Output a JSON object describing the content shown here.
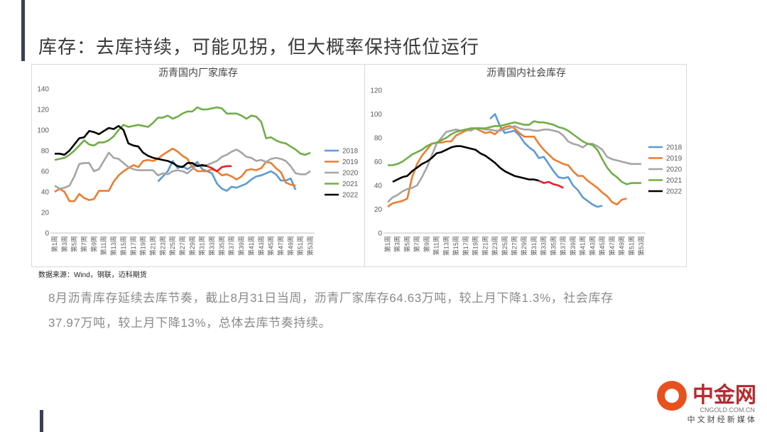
{
  "title": "库存：去库持续，可能见拐，但大概率保持低位运行",
  "chart_data": [
    {
      "type": "line",
      "title": "沥青国内厂家库存",
      "categories": [
        "第1周",
        null,
        "第3周",
        null,
        "第5周",
        null,
        "第7周",
        null,
        "第9周",
        null,
        "第11周",
        null,
        "第13周",
        null,
        "第15周",
        null,
        "第17周",
        null,
        "第19周",
        null,
        "第21周",
        null,
        "第23周",
        null,
        "第25周",
        null,
        "第27周",
        null,
        "第29周",
        null,
        "第31周",
        null,
        "第33周",
        null,
        "第35周",
        null,
        "第37周",
        null,
        "第39周",
        null,
        "第41周",
        null,
        "第43周",
        null,
        "第45周",
        null,
        "第47周",
        null,
        "第49周",
        null,
        "第51周",
        null,
        "第53周"
      ],
      "ylim": [
        0,
        140
      ],
      "yticks": [
        0,
        20,
        40,
        60,
        80,
        100,
        120,
        140
      ],
      "grid": false,
      "legend": "right",
      "series": [
        {
          "name": "2018",
          "color": "#5b9bd5",
          "values": [
            null,
            null,
            null,
            null,
            null,
            null,
            null,
            null,
            null,
            null,
            null,
            null,
            null,
            null,
            null,
            null,
            null,
            null,
            null,
            null,
            null,
            50,
            55,
            60,
            70,
            63,
            65,
            62,
            65,
            69,
            62,
            60,
            58,
            48,
            43,
            41,
            45,
            44,
            46,
            48,
            52,
            55,
            56,
            58,
            60,
            57,
            51,
            51,
            53,
            42,
            null,
            null,
            null
          ]
        },
        {
          "name": "2019",
          "color": "#ed7d31",
          "values": [
            40,
            43,
            40,
            31,
            31,
            38,
            34,
            32,
            33,
            41,
            41,
            41,
            50,
            56,
            60,
            63,
            66,
            64,
            70,
            71,
            70,
            72,
            76,
            79,
            82,
            79,
            75,
            72,
            64,
            60,
            60,
            60,
            62,
            60,
            56,
            57,
            55,
            52,
            55,
            61,
            62,
            61,
            63,
            69,
            68,
            63,
            59,
            49,
            47,
            46,
            null,
            null,
            null
          ]
        },
        {
          "name": "2020",
          "color": "#a5a5a5",
          "values": [
            46,
            43,
            44,
            46,
            55,
            67,
            68,
            68,
            60,
            62,
            70,
            78,
            73,
            72,
            68,
            64,
            62,
            61,
            61,
            61,
            61,
            56,
            58,
            57,
            60,
            61,
            60,
            58,
            62,
            67,
            65,
            66,
            68,
            70,
            74,
            76,
            79,
            81,
            78,
            74,
            73,
            70,
            71,
            69,
            72,
            73,
            72,
            70,
            65,
            58,
            57,
            57,
            60
          ]
        },
        {
          "name": "2021",
          "color": "#70ad47",
          "values": [
            71,
            72,
            73,
            76,
            80,
            85,
            90,
            86,
            85,
            88,
            88,
            90,
            94,
            100,
            105,
            103,
            104,
            105,
            104,
            103,
            107,
            112,
            112,
            114,
            111,
            113,
            116,
            118,
            118,
            122,
            120,
            120,
            121,
            122,
            121,
            116,
            116,
            116,
            114,
            111,
            114,
            113,
            108,
            92,
            93,
            90,
            88,
            87,
            84,
            81,
            77,
            76,
            78
          ]
        },
        {
          "name": "2022",
          "color": "#000000",
          "recent_color": "#e8202a",
          "recent_from": 31,
          "values": [
            77,
            77,
            76,
            80,
            86,
            92,
            93,
            99,
            98,
            96,
            99,
            102,
            101,
            104,
            100,
            87,
            85,
            84,
            78,
            75,
            73,
            72,
            71,
            70,
            68,
            65,
            64,
            68,
            68,
            65,
            66,
            65,
            63,
            60,
            64,
            65,
            65,
            null,
            null,
            null,
            null,
            null,
            null,
            null,
            null,
            null,
            null,
            null,
            null,
            null,
            null,
            null,
            null
          ]
        }
      ]
    },
    {
      "type": "line",
      "title": "沥青国内社会库存",
      "categories": [
        "第1周",
        null,
        "第3周",
        null,
        "第5周",
        null,
        "第7周",
        null,
        "第9周",
        null,
        "第11周",
        null,
        "第13周",
        null,
        "第15周",
        null,
        "第17周",
        null,
        "第19周",
        null,
        "第21周",
        null,
        "第23周",
        null,
        "第25周",
        null,
        "第27周",
        null,
        "第29周",
        null,
        "第31周",
        null,
        "第33周",
        null,
        "第35周",
        null,
        "第37周",
        null,
        "第39周",
        null,
        "第41周",
        null,
        "第43周",
        null,
        "第45周",
        null,
        "第47周",
        null,
        "第49周",
        null,
        "第51周",
        null,
        "第53周"
      ],
      "ylim": [
        0,
        120
      ],
      "yticks": [
        0,
        20,
        40,
        60,
        80,
        100,
        120
      ],
      "grid": false,
      "legend": "right",
      "series": [
        {
          "name": "2018",
          "color": "#5b9bd5",
          "values": [
            null,
            null,
            null,
            null,
            null,
            null,
            null,
            null,
            null,
            null,
            null,
            null,
            null,
            null,
            null,
            null,
            null,
            null,
            null,
            null,
            null,
            96,
            100,
            90,
            84,
            85,
            86,
            82,
            76,
            72,
            69,
            63,
            64,
            58,
            52,
            47,
            46,
            47,
            40,
            36,
            30,
            27,
            24,
            22,
            23,
            null,
            null,
            null,
            null,
            null,
            null,
            null,
            null
          ]
        },
        {
          "name": "2019",
          "color": "#ed7d31",
          "values": [
            22,
            25,
            26,
            27,
            29,
            47,
            58,
            65,
            70,
            75,
            76,
            76,
            77,
            77,
            82,
            84,
            86,
            87,
            88,
            86,
            84,
            85,
            83,
            87,
            89,
            90,
            88,
            84,
            81,
            81,
            81,
            75,
            70,
            66,
            62,
            60,
            58,
            57,
            52,
            48,
            48,
            44,
            41,
            38,
            34,
            31,
            26,
            24,
            28,
            29,
            null,
            null,
            null
          ]
        },
        {
          "name": "2020",
          "color": "#a5a5a5",
          "values": [
            26,
            30,
            32,
            35,
            37,
            38,
            40,
            47,
            55,
            65,
            75,
            80,
            85,
            86,
            87,
            86,
            87,
            86,
            88,
            88,
            87,
            87,
            86,
            86,
            87,
            88,
            90,
            88,
            87,
            87,
            86,
            86,
            87,
            87,
            86,
            85,
            82,
            77,
            75,
            74,
            72,
            75,
            75,
            73,
            70,
            64,
            62,
            61,
            60,
            59,
            58,
            58,
            58
          ]
        },
        {
          "name": "2021",
          "color": "#70ad47",
          "values": [
            57,
            57,
            58,
            60,
            63,
            66,
            68,
            70,
            73,
            75,
            76,
            78,
            80,
            83,
            85,
            86,
            87,
            88,
            88,
            88,
            88,
            89,
            90,
            90,
            91,
            92,
            93,
            92,
            91,
            91,
            94,
            93,
            93,
            92,
            91,
            89,
            88,
            86,
            83,
            80,
            77,
            75,
            74,
            70,
            62,
            55,
            50,
            47,
            43,
            41,
            42,
            42,
            42
          ]
        },
        {
          "name": "2022",
          "color": "#000000",
          "recent_color": "#e8202a",
          "recent_from": 31,
          "values": [
            null,
            43,
            45,
            47,
            48,
            52,
            55,
            58,
            60,
            63,
            67,
            68,
            70,
            72,
            73,
            73,
            72,
            71,
            70,
            67,
            65,
            62,
            59,
            55,
            52,
            50,
            48,
            47,
            46,
            45,
            45,
            44,
            42,
            43,
            41,
            40,
            38,
            null,
            null,
            null,
            null,
            null,
            null,
            null,
            null,
            null,
            null,
            null,
            null,
            null,
            null,
            null,
            null
          ]
        }
      ]
    }
  ],
  "source": "数据来源：Wind，钢联，迈科期货",
  "paragraph": "8月沥青库存延续去库节奏，截止8月31日当周，沥青厂家库存64.63万吨，较上月下降1.3%，社会库存37.97万吨，较上月下降13%，总体去库节奏持续。",
  "watermark": {
    "brand": "中金网",
    "url": "CNGOLD.COM.CN",
    "slogan": "中 文 财 经 新 媒 体"
  }
}
